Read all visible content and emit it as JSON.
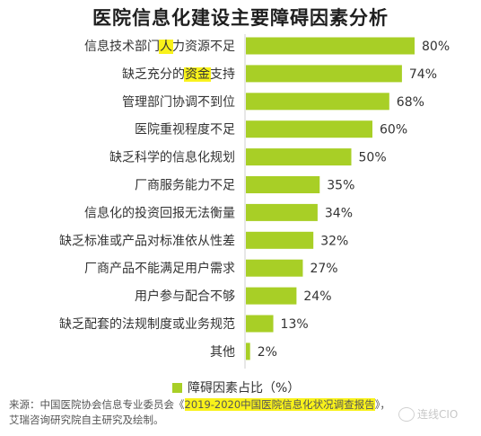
{
  "title": "医院信息化建设主要障碍因素分析",
  "chart_data": {
    "type": "bar",
    "orientation": "horizontal",
    "color": "#a8cf26",
    "categories": [
      "信息技术部门人力资源不足",
      "缺乏充分的资金支持",
      "管理部门协调不到位",
      "医院重视程度不足",
      "缺乏科学的信息化规划",
      "厂商服务能力不足",
      "信息化的投资回报无法衡量",
      "缺乏标准或产品对标准依从性差",
      "厂商产品不能满足用户需求",
      "用户参与配合不够",
      "缺乏配套的法规制度或业务规范",
      "其他"
    ],
    "values": [
      80,
      74,
      68,
      60,
      50,
      35,
      34,
      32,
      27,
      24,
      13,
      2
    ],
    "value_labels": [
      "80%",
      "74%",
      "68%",
      "60%",
      "50%",
      "35%",
      "34%",
      "32%",
      "27%",
      "24%",
      "13%",
      "2%"
    ],
    "highlights": [
      {
        "category_index": 0,
        "text": "人"
      },
      {
        "category_index": 1,
        "text": "资金"
      }
    ],
    "legend": "障碍因素占比（%）",
    "legend_position": "bottom",
    "grid": false
  },
  "source": {
    "prefix": "来源：中国医院协会信息专业委员会《",
    "highlight": "2019-2020中国医院信息化状况调查报告",
    "suffix": "》，艾瑞咨询研究院自主研究及绘制。"
  },
  "watermark": "连线CIO"
}
